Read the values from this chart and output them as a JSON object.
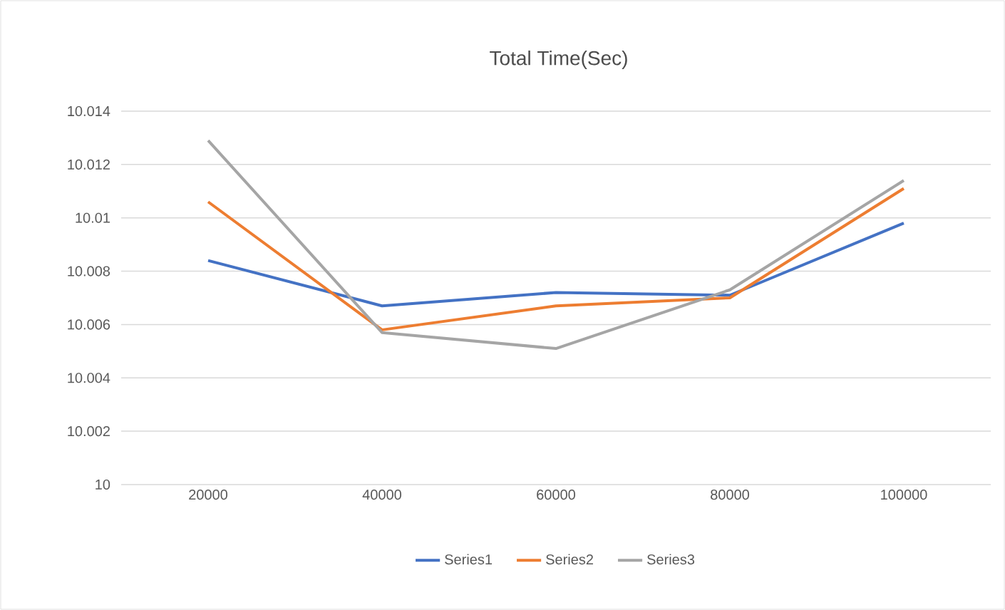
{
  "chart_data": {
    "type": "line",
    "title": "Total Time(Sec)",
    "categories": [
      "20000",
      "40000",
      "60000",
      "80000",
      "100000"
    ],
    "series": [
      {
        "name": "Series1",
        "color": "#4472c4",
        "values": [
          10.0084,
          10.0067,
          10.0072,
          10.0071,
          10.0098
        ]
      },
      {
        "name": "Series2",
        "color": "#ed7d31",
        "values": [
          10.0106,
          10.0058,
          10.0067,
          10.007,
          10.0111
        ]
      },
      {
        "name": "Series3",
        "color": "#a5a5a5",
        "values": [
          10.0129,
          10.0057,
          10.0051,
          10.0073,
          10.0114
        ]
      }
    ],
    "ylim": [
      10,
      10.014
    ],
    "yticks": [
      10,
      10.002,
      10.004,
      10.006,
      10.008,
      10.01,
      10.012,
      10.014
    ],
    "grid": "y",
    "legend": "bottom",
    "marker": "none",
    "line_style": "solid"
  }
}
